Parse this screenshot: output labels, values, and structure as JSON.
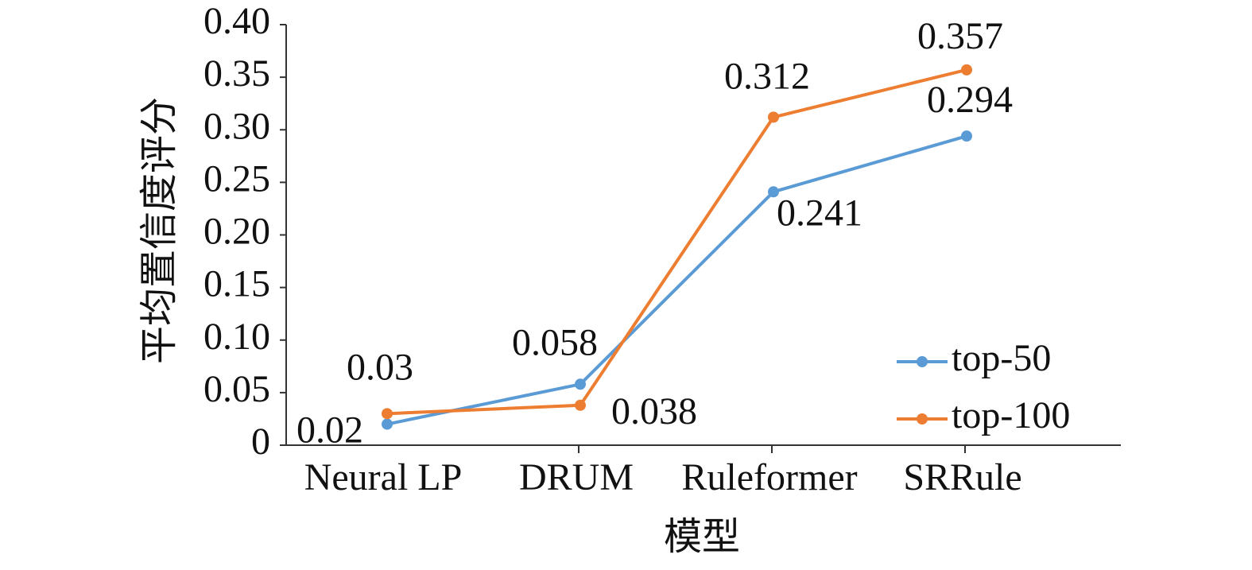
{
  "chart_data": {
    "type": "line",
    "y_label": "平均置信度评分",
    "x_label": "模型",
    "categories": [
      "Neural LP",
      "DRUM",
      "Ruleformer",
      "SRRule"
    ],
    "series": [
      {
        "name": "top-50",
        "color": "#5b9bd5",
        "values": [
          0.02,
          0.058,
          0.241,
          0.294
        ]
      },
      {
        "name": "top-100",
        "color": "#ed7d31",
        "values": [
          0.03,
          0.038,
          0.312,
          0.357
        ]
      }
    ],
    "ylim": [
      0,
      0.4
    ],
    "yticks": [
      0,
      0.05,
      {
        "value": 0.1,
        "label": "0.10"
      },
      0.15,
      {
        "value": 0.2,
        "label": "0.20"
      },
      0.25,
      {
        "value": 0.3,
        "label": "0.30"
      },
      0.35,
      {
        "value": 0.4,
        "label": "0.40"
      }
    ],
    "legend": "right"
  }
}
